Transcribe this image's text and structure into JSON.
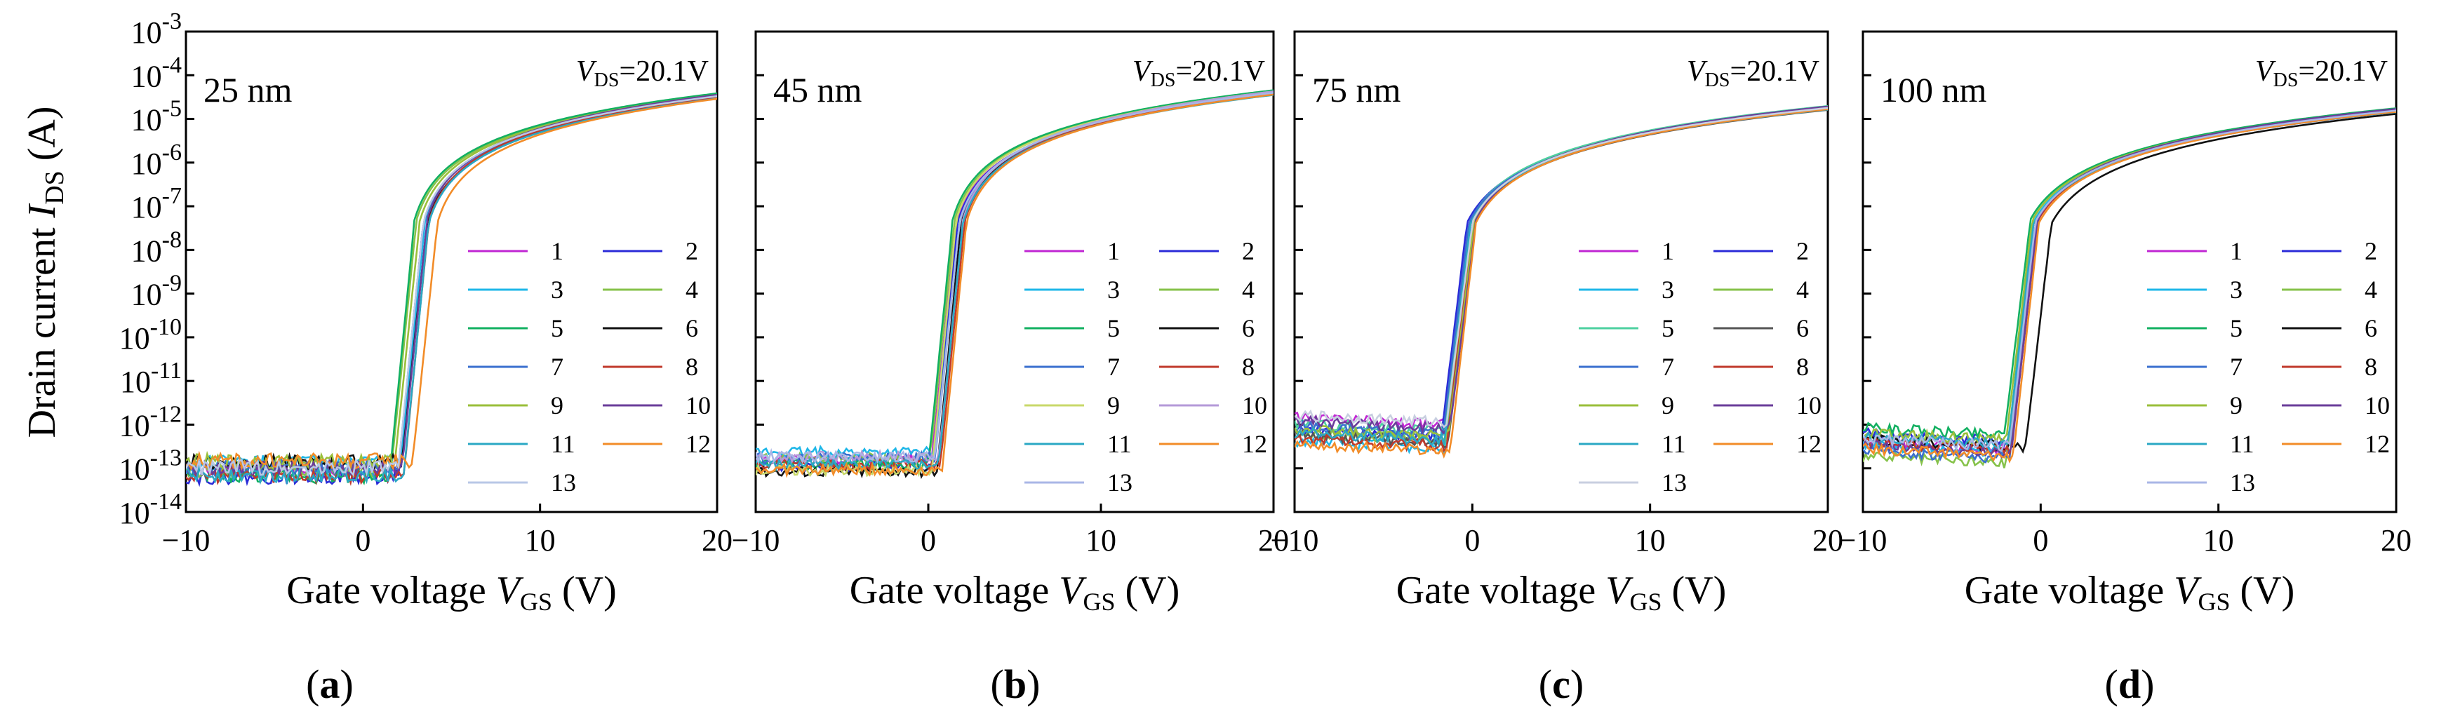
{
  "chart_data": [
    {
      "type": "line",
      "panel_label": "a",
      "thickness": "25 nm",
      "vds_symbol": "V",
      "vds_sub": "DS",
      "vds_value": "=20.1V",
      "x_range": [
        -10,
        20
      ],
      "y_log_range": [
        -14,
        -3
      ],
      "series": [
        {
          "name": "1",
          "color": "#c026d3",
          "von": 2.0
        },
        {
          "name": "2",
          "color": "#2b2bd8",
          "von": 2.0
        },
        {
          "name": "3",
          "color": "#1eb7e8",
          "von": 2.1
        },
        {
          "name": "4",
          "color": "#86c24a",
          "von": 1.6
        },
        {
          "name": "5",
          "color": "#12b061",
          "von": 1.5
        },
        {
          "name": "6",
          "color": "#111111",
          "von": 2.2
        },
        {
          "name": "7",
          "color": "#3a6fcf",
          "von": 2.0
        },
        {
          "name": "8",
          "color": "#c0392b",
          "von": 2.3
        },
        {
          "name": "9",
          "color": "#9abf3a",
          "von": 1.8
        },
        {
          "name": "10",
          "color": "#6a3d9a",
          "von": 2.2
        },
        {
          "name": "11",
          "color": "#2aa8c4",
          "von": 2.3
        },
        {
          "name": "12",
          "color": "#f28c28",
          "von": 2.8
        },
        {
          "name": "13",
          "color": "#b8c7e6",
          "von": 2.0
        }
      ]
    },
    {
      "type": "line",
      "panel_label": "b",
      "thickness": "45 nm",
      "vds_symbol": "V",
      "vds_sub": "DS",
      "vds_value": "=20.1V",
      "x_range": [
        -10,
        20
      ],
      "y_log_range": [
        -14,
        -3
      ],
      "series": [
        {
          "name": "1",
          "color": "#c026d3",
          "von": 0.2
        },
        {
          "name": "2",
          "color": "#2b2bd8",
          "von": 0.3
        },
        {
          "name": "3",
          "color": "#1eb7e8",
          "von": 0.4
        },
        {
          "name": "4",
          "color": "#86c24a",
          "von": 0.1
        },
        {
          "name": "5",
          "color": "#12b061",
          "von": 0.0
        },
        {
          "name": "6",
          "color": "#111111",
          "von": 0.5
        },
        {
          "name": "7",
          "color": "#3a6fcf",
          "von": 0.4
        },
        {
          "name": "8",
          "color": "#c0392b",
          "von": 0.7
        },
        {
          "name": "9",
          "color": "#c8d86a",
          "von": 0.2
        },
        {
          "name": "10",
          "color": "#b49ad8",
          "von": 0.6
        },
        {
          "name": "11",
          "color": "#2aa8c4",
          "von": 0.6
        },
        {
          "name": "12",
          "color": "#f28c28",
          "von": 0.8
        },
        {
          "name": "13",
          "color": "#a9b6e6",
          "von": 0.4
        }
      ]
    },
    {
      "type": "line",
      "panel_label": "c",
      "thickness": "75 nm",
      "vds_symbol": "V",
      "vds_sub": "DS",
      "vds_value": "=20.1V",
      "x_range": [
        -10,
        20
      ],
      "y_log_range": [
        -14,
        -3
      ],
      "series": [
        {
          "name": "1",
          "color": "#c026d3",
          "von": -1.6
        },
        {
          "name": "2",
          "color": "#2b2bd8",
          "von": -1.7
        },
        {
          "name": "3",
          "color": "#1eb7e8",
          "von": -1.5
        },
        {
          "name": "4",
          "color": "#86c24a",
          "von": -1.4
        },
        {
          "name": "5",
          "color": "#4ed0a0",
          "von": -1.5
        },
        {
          "name": "6",
          "color": "#555555",
          "von": -1.3
        },
        {
          "name": "7",
          "color": "#3a6fcf",
          "von": -1.6
        },
        {
          "name": "8",
          "color": "#c0392b",
          "von": -1.4
        },
        {
          "name": "9",
          "color": "#9abf3a",
          "von": -1.3
        },
        {
          "name": "10",
          "color": "#6a3d9a",
          "von": -1.2
        },
        {
          "name": "11",
          "color": "#2aa8c4",
          "von": -1.5
        },
        {
          "name": "12",
          "color": "#f28c28",
          "von": -1.2
        },
        {
          "name": "13",
          "color": "#c8cfe0",
          "von": -1.4
        }
      ]
    },
    {
      "type": "line",
      "panel_label": "d",
      "thickness": "100 nm",
      "vds_symbol": "V",
      "vds_sub": "DS",
      "vds_value": "=20.1V",
      "x_range": [
        -10,
        20
      ],
      "y_log_range": [
        -14,
        -3
      ],
      "series": [
        {
          "name": "1",
          "color": "#c026d3",
          "von": -1.8
        },
        {
          "name": "2",
          "color": "#2b2bd8",
          "von": -1.7
        },
        {
          "name": "3",
          "color": "#1eb7e8",
          "von": -1.8
        },
        {
          "name": "4",
          "color": "#86c24a",
          "von": -1.9
        },
        {
          "name": "5",
          "color": "#12b061",
          "von": -2.0
        },
        {
          "name": "6",
          "color": "#111111",
          "von": -0.8
        },
        {
          "name": "7",
          "color": "#3a6fcf",
          "von": -1.7
        },
        {
          "name": "8",
          "color": "#c0392b",
          "von": -1.6
        },
        {
          "name": "9",
          "color": "#9abf3a",
          "von": -1.9
        },
        {
          "name": "10",
          "color": "#6a3d9a",
          "von": -1.6
        },
        {
          "name": "11",
          "color": "#2aa8c4",
          "von": -1.8
        },
        {
          "name": "12",
          "color": "#f28c28",
          "von": -1.5
        },
        {
          "name": "13",
          "color": "#a9b6e6",
          "von": -1.7
        }
      ]
    }
  ],
  "y_axis": {
    "label_prefix": "Drain current ",
    "label_symbol": "I",
    "label_sub": "DS",
    "label_suffix": " (A)",
    "tick_base": "10",
    "tick_exponents": [
      "-3",
      "-4",
      "-5",
      "-6",
      "-7",
      "-8",
      "-9",
      "-10",
      "-11",
      "-12",
      "-13",
      "-14"
    ]
  },
  "x_axis": {
    "label_prefix": "Gate voltage  ",
    "label_symbol": "V",
    "label_sub": "GS",
    "label_suffix": " (V)",
    "ticks": [
      "−10",
      "0",
      "10",
      "20"
    ]
  },
  "captions": [
    "(a)",
    "(b)",
    "(c)",
    "(d)"
  ]
}
